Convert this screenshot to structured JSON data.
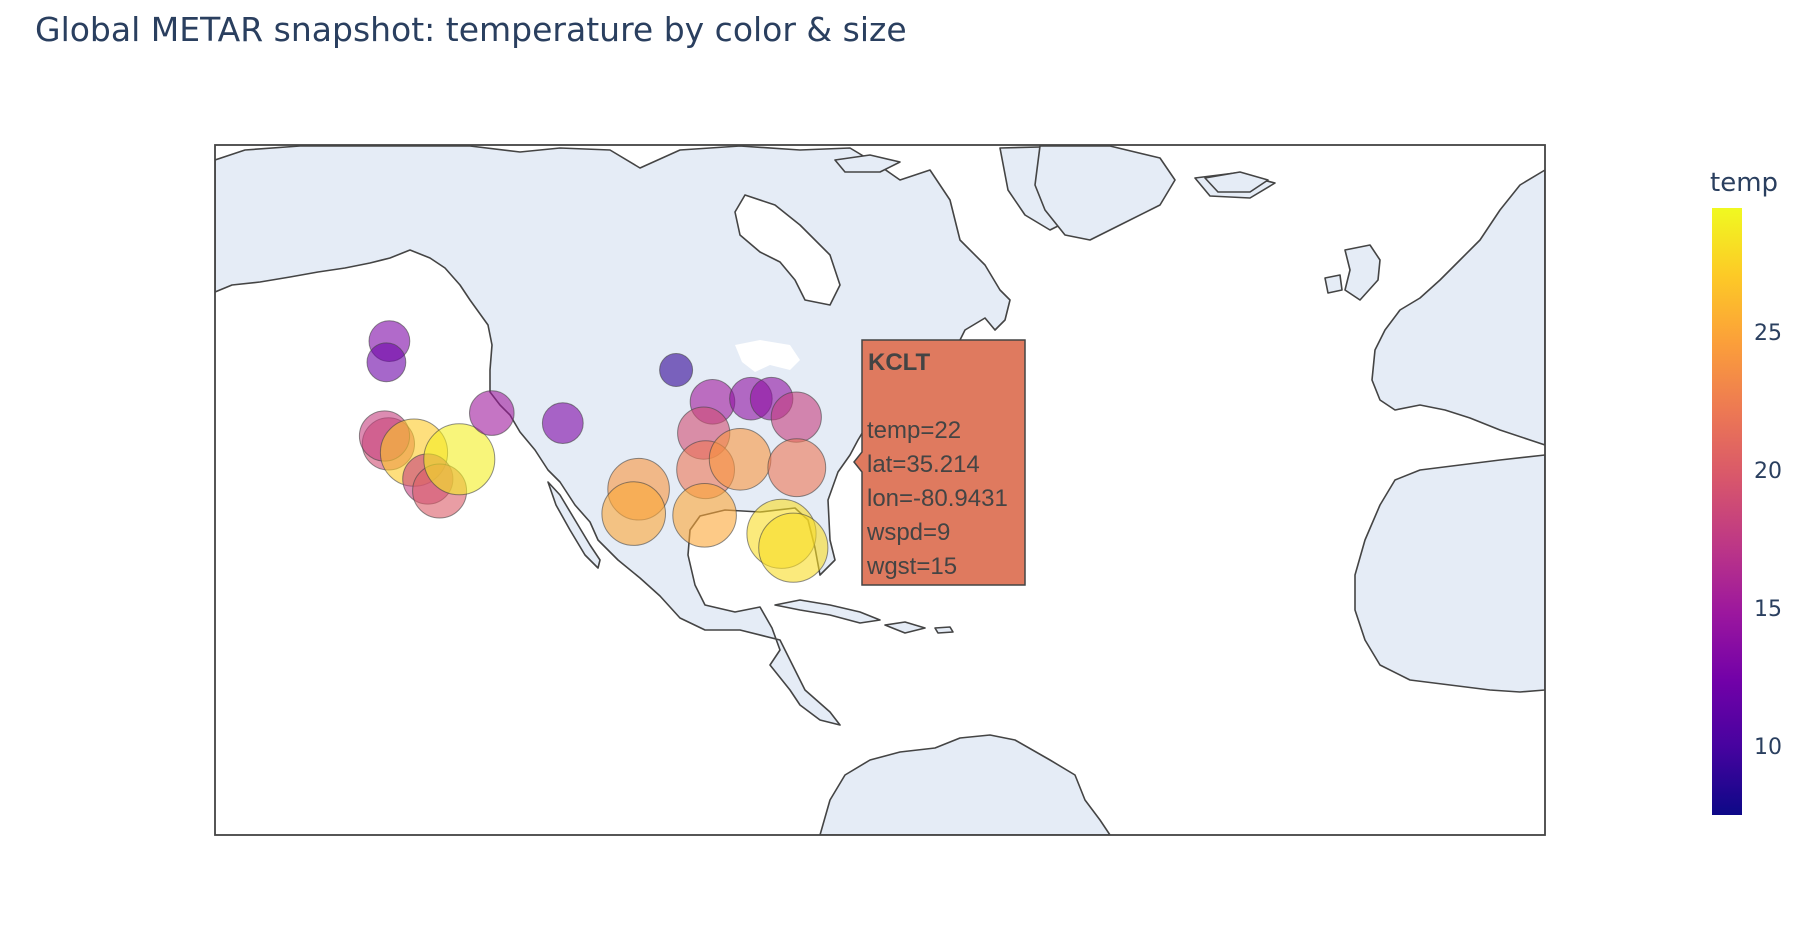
{
  "title": "Global METAR snapshot: temperature by color & size",
  "colorbar": {
    "title": "temp",
    "ticks": [
      10,
      15,
      20,
      25
    ],
    "range": [
      7.5,
      29.5
    ]
  },
  "hover": {
    "station": "KCLT",
    "lines": [
      "temp=22",
      "lat=35.214",
      "lon=-80.9431",
      "wspd=9",
      "wgst=15"
    ],
    "color": "#df7a5f"
  },
  "chart_data": {
    "type": "scatter",
    "title": "Global METAR snapshot: temperature by color & size",
    "color_variable": "temp",
    "size_variable": "temp",
    "map_extent": {
      "lon": [
        -140,
        -5
      ],
      "lat": [
        -10,
        62
      ]
    },
    "points": [
      {
        "lon": -122.3,
        "lat": 47.5,
        "temp": 13
      },
      {
        "lon": -122.6,
        "lat": 45.6,
        "temp": 12
      },
      {
        "lon": -122.4,
        "lat": 37.7,
        "temp": 19
      },
      {
        "lon": -122.8,
        "lat": 38.5,
        "temp": 18
      },
      {
        "lon": -119.8,
        "lat": 36.8,
        "temp": 27
      },
      {
        "lon": -118.4,
        "lat": 34.0,
        "temp": 18
      },
      {
        "lon": -117.2,
        "lat": 32.7,
        "temp": 20
      },
      {
        "lon": -115.2,
        "lat": 36.1,
        "temp": 29
      },
      {
        "lon": -111.9,
        "lat": 40.8,
        "temp": 15
      },
      {
        "lon": -104.7,
        "lat": 39.8,
        "temp": 13
      },
      {
        "lon": -93.2,
        "lat": 44.9,
        "temp": 9
      },
      {
        "lon": -89.5,
        "lat": 41.9,
        "temp": 15
      },
      {
        "lon": -85.6,
        "lat": 42.2,
        "temp": 14
      },
      {
        "lon": -83.5,
        "lat": 42.2,
        "temp": 14
      },
      {
        "lon": -81.0,
        "lat": 40.4,
        "temp": 18
      },
      {
        "lon": -90.4,
        "lat": 38.8,
        "temp": 19
      },
      {
        "lon": -90.2,
        "lat": 35.0,
        "temp": 22
      },
      {
        "lon": -86.7,
        "lat": 36.1,
        "temp": 24
      },
      {
        "lon": -80.9431,
        "lat": 35.214,
        "temp": 22
      },
      {
        "lon": -97.0,
        "lat": 32.9,
        "temp": 24
      },
      {
        "lon": -97.5,
        "lat": 30.2,
        "temp": 25
      },
      {
        "lon": -90.3,
        "lat": 30.0,
        "temp": 25
      },
      {
        "lon": -82.5,
        "lat": 27.9,
        "temp": 28
      },
      {
        "lon": -81.3,
        "lat": 26.3,
        "temp": 28
      }
    ]
  }
}
